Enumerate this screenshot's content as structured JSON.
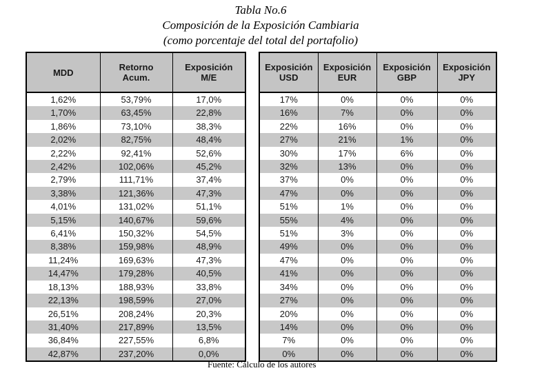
{
  "title": {
    "line1": "Tabla No.6",
    "line2": "Composición de la Exposición Cambiaria",
    "line3": "(como porcentaje del total del portafolio)"
  },
  "left_table": {
    "headers": [
      "MDD",
      "Retorno Acum.",
      "Exposición M/E"
    ],
    "rows": [
      [
        "1,62%",
        "53,79%",
        "17,0%"
      ],
      [
        "1,70%",
        "63,45%",
        "22,8%"
      ],
      [
        "1,86%",
        "73,10%",
        "38,3%"
      ],
      [
        "2,02%",
        "82,75%",
        "48,4%"
      ],
      [
        "2,22%",
        "92,41%",
        "52,6%"
      ],
      [
        "2,42%",
        "102,06%",
        "45,2%"
      ],
      [
        "2,79%",
        "111,71%",
        "37,4%"
      ],
      [
        "3,38%",
        "121,36%",
        "47,3%"
      ],
      [
        "4,01%",
        "131,02%",
        "51,1%"
      ],
      [
        "5,15%",
        "140,67%",
        "59,6%"
      ],
      [
        "6,41%",
        "150,32%",
        "54,5%"
      ],
      [
        "8,38%",
        "159,98%",
        "48,9%"
      ],
      [
        "11,24%",
        "169,63%",
        "47,3%"
      ],
      [
        "14,47%",
        "179,28%",
        "40,5%"
      ],
      [
        "18,13%",
        "188,93%",
        "33,8%"
      ],
      [
        "22,13%",
        "198,59%",
        "27,0%"
      ],
      [
        "26,51%",
        "208,24%",
        "20,3%"
      ],
      [
        "31,40%",
        "217,89%",
        "13,5%"
      ],
      [
        "36,84%",
        "227,55%",
        "6,8%"
      ],
      [
        "42,87%",
        "237,20%",
        "0,0%"
      ]
    ]
  },
  "right_table": {
    "headers": [
      "Exposición USD",
      "Exposición EUR",
      "Exposición GBP",
      "Exposición JPY"
    ],
    "rows": [
      [
        "17%",
        "0%",
        "0%",
        "0%"
      ],
      [
        "16%",
        "7%",
        "0%",
        "0%"
      ],
      [
        "22%",
        "16%",
        "0%",
        "0%"
      ],
      [
        "27%",
        "21%",
        "1%",
        "0%"
      ],
      [
        "30%",
        "17%",
        "6%",
        "0%"
      ],
      [
        "32%",
        "13%",
        "0%",
        "0%"
      ],
      [
        "37%",
        "0%",
        "0%",
        "0%"
      ],
      [
        "47%",
        "0%",
        "0%",
        "0%"
      ],
      [
        "51%",
        "1%",
        "0%",
        "0%"
      ],
      [
        "55%",
        "4%",
        "0%",
        "0%"
      ],
      [
        "51%",
        "3%",
        "0%",
        "0%"
      ],
      [
        "49%",
        "0%",
        "0%",
        "0%"
      ],
      [
        "47%",
        "0%",
        "0%",
        "0%"
      ],
      [
        "41%",
        "0%",
        "0%",
        "0%"
      ],
      [
        "34%",
        "0%",
        "0%",
        "0%"
      ],
      [
        "27%",
        "0%",
        "0%",
        "0%"
      ],
      [
        "20%",
        "0%",
        "0%",
        "0%"
      ],
      [
        "14%",
        "0%",
        "0%",
        "0%"
      ],
      [
        "7%",
        "0%",
        "0%",
        "0%"
      ],
      [
        "0%",
        "0%",
        "0%",
        "0%"
      ]
    ]
  },
  "footer": {
    "source": "Fuente: Cálculo de los autores"
  },
  "colors": {
    "header_bg": "#c4c4c4",
    "stripe_bg": "#c8c8c8",
    "border": "#000000",
    "background": "#ffffff"
  }
}
